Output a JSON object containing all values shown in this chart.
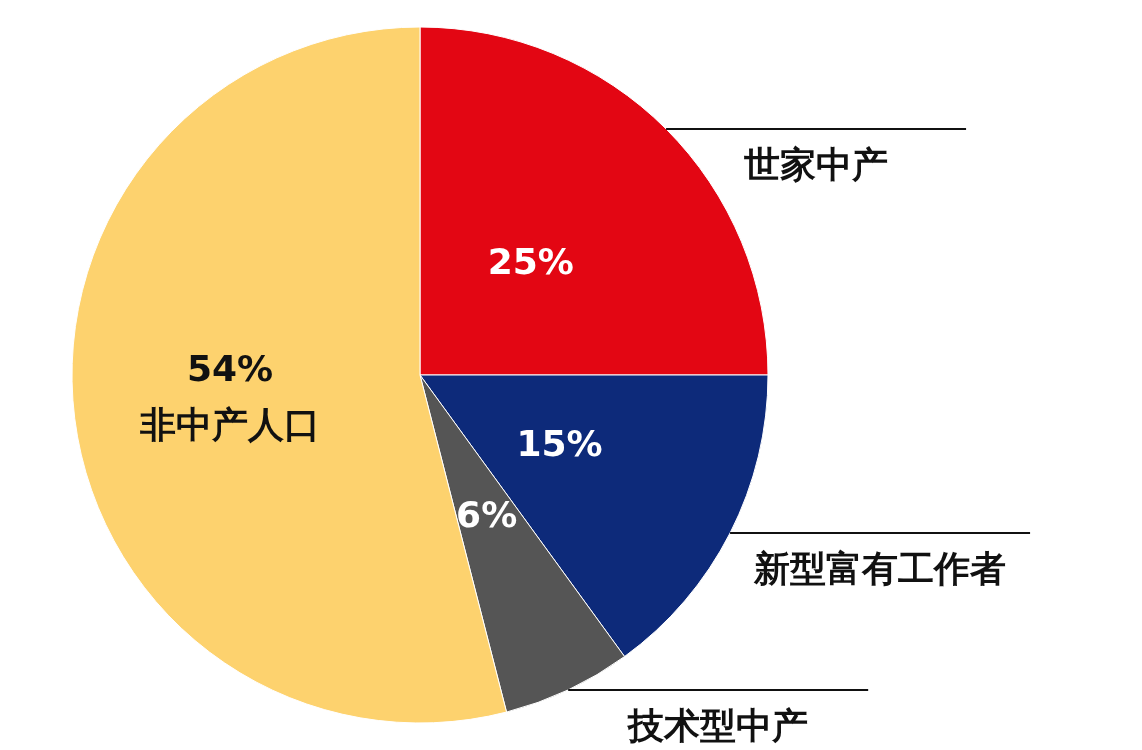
{
  "chart_data": {
    "type": "pie",
    "categories": [
      "世家中产",
      "新型富有工作者",
      "技术型中产",
      "非中产人口"
    ],
    "values": [
      25,
      15,
      6,
      54
    ],
    "colors": [
      "#e30613",
      "#0d2a7a",
      "#555555",
      "#fdd26e"
    ],
    "value_labels": [
      "25%",
      "15%",
      "6%",
      "54%"
    ]
  }
}
